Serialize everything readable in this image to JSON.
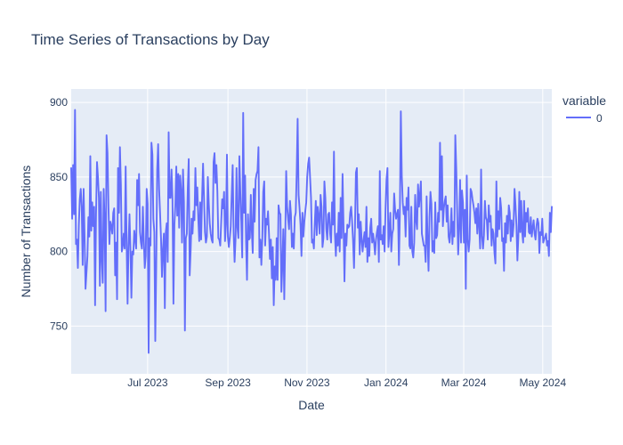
{
  "chart_data": {
    "type": "line",
    "title": "Time Series of Transactions by Day",
    "xlabel": "Date",
    "ylabel": "Number of Transactions",
    "x_start": "2023-05-03",
    "x_end": "2024-05-08",
    "ylim": [
      718,
      909
    ],
    "y_ticks": [
      750,
      800,
      850,
      900
    ],
    "x_ticks": [
      {
        "date": "2023-07-01",
        "label": "Jul 2023"
      },
      {
        "date": "2023-09-01",
        "label": "Sep 2023"
      },
      {
        "date": "2023-11-01",
        "label": "Nov 2023"
      },
      {
        "date": "2024-01-01",
        "label": "Jan 2024"
      },
      {
        "date": "2024-03-01",
        "label": "Mar 2024"
      },
      {
        "date": "2024-05-01",
        "label": "May 2024"
      }
    ],
    "series": [
      {
        "name": "0",
        "color": "#636efa",
        "values": [
          856,
          822,
          858,
          825,
          895,
          805,
          808,
          789,
          818,
          835,
          842,
          830,
          791,
          842,
          810,
          775,
          786,
          797,
          823,
          810,
          864,
          814,
          833,
          817,
          830,
          764,
          825,
          860,
          850,
          836,
          777,
          840,
          794,
          779,
          842,
          821,
          760,
          878,
          866,
          830,
          805,
          820,
          817,
          812,
          826,
          829,
          784,
          806,
          768,
          856,
          826,
          870,
          845,
          800,
          804,
          812,
          802,
          857,
          805,
          765,
          804,
          825,
          802,
          769,
          800,
          798,
          814,
          808,
          802,
          848,
          831,
          852,
          813,
          806,
          802,
          830,
          807,
          789,
          797,
          842,
          832,
          732,
          809,
          804,
          873,
          865,
          822,
          813,
          740,
          790,
          855,
          872,
          842,
          826,
          809,
          783,
          801,
          812,
          762,
          813,
          819,
          793,
          880,
          836,
          836,
          855,
          835,
          765,
          818,
          831,
          857,
          824,
          852,
          816,
          851,
          841,
          806,
          855,
          833,
          747,
          809,
          812,
          842,
          862,
          784,
          800,
          822,
          812,
          827,
          821,
          856,
          831,
          843,
          822,
          807,
          833,
          808,
          837,
          859,
          836,
          813,
          806,
          810,
          850,
          832,
          819,
          812,
          808,
          806,
          860,
          866,
          846,
          858,
          840,
          809,
          808,
          804,
          820,
          835,
          829,
          840,
          807,
          818,
          865,
          810,
          803,
          809,
          817,
          838,
          858,
          813,
          793,
          808,
          856,
          816,
          809,
          864,
          840,
          820,
          796,
          893,
          826,
          851,
          807,
          781,
          825,
          808,
          809,
          838,
          814,
          799,
          842,
          820,
          848,
          852,
          854,
          870,
          796,
          808,
          791,
          808,
          840,
          847,
          804,
          822,
          818,
          827,
          812,
          795,
          808,
          782,
          803,
          764,
          790,
          781,
          809,
          781,
          831,
          826,
          825,
          773,
          791,
          815,
          768,
          808,
          854,
          830,
          822,
          815,
          834,
          825,
          803,
          812,
          802,
          823,
          826,
          853,
          889,
          838,
          829,
          818,
          797,
          826,
          810,
          820,
          827,
          833,
          850,
          859,
          863,
          850,
          836,
          806,
          808,
          802,
          820,
          834,
          811,
          830,
          824,
          812,
          838,
          830,
          803,
          809,
          847,
          836,
          815,
          808,
          825,
          826,
          812,
          806,
          833,
          818,
          867,
          812,
          797,
          812,
          804,
          826,
          800,
          836,
          809,
          852,
          818,
          780,
          812,
          804,
          818,
          816,
          817,
          826,
          830,
          820,
          807,
          789,
          816,
          853,
          856,
          816,
          825,
          798,
          820,
          808,
          800,
          808,
          813,
          803,
          830,
          793,
          809,
          797,
          816,
          822,
          806,
          812,
          806,
          798,
          808,
          813,
          817,
          793,
          854,
          808,
          811,
          805,
          817,
          800,
          829,
          848,
          856,
          803,
          813,
          826,
          800,
          812,
          815,
          839,
          828,
          822,
          825,
          828,
          791,
          826,
          894,
          851,
          833,
          825,
          830,
          810,
          836,
          828,
          843,
          804,
          802,
          830,
          800,
          796,
          806,
          838,
          821,
          815,
          845,
          830,
          838,
          847,
          812,
          808,
          804,
          804,
          793,
          837,
          807,
          787,
          823,
          840,
          832,
          800,
          807,
          799,
          833,
          809,
          811,
          826,
          820,
          873,
          828,
          864,
          817,
          829,
          834,
          837,
          820,
          831,
          810,
          806,
          814,
          829,
          805,
          820,
          810,
          878,
          856,
          826,
          798,
          815,
          848,
          806,
          841,
          833,
          806,
          828,
          775,
          851,
          808,
          800,
          808,
          842,
          840,
          835,
          831,
          826,
          819,
          829,
          812,
          832,
          817,
          802,
          855,
          810,
          802,
          811,
          834,
          823,
          821,
          808,
          831,
          820,
          824,
          804,
          815,
          812,
          799,
          792,
          847,
          810,
          827,
          815,
          836,
          829,
          807,
          809,
          787,
          819,
          806,
          824,
          812,
          831,
          826,
          807,
          821,
          810,
          818,
          842,
          831,
          817,
          794,
          810,
          840,
          813,
          834,
          813,
          806,
          834,
          810,
          826,
          820,
          829,
          813,
          812,
          823,
          810,
          816,
          821,
          812,
          808,
          817,
          822,
          819,
          799,
          813,
          811,
          822,
          806,
          808,
          810,
          812,
          804,
          807,
          797,
          826,
          813,
          830
        ]
      }
    ],
    "legend": {
      "title": "variable",
      "position": "top-right"
    },
    "colors": {
      "plot_bg": "#e5ecf6",
      "grid": "#ffffff",
      "text": "#2a3f5f",
      "line": "#636efa"
    },
    "grid": true
  }
}
